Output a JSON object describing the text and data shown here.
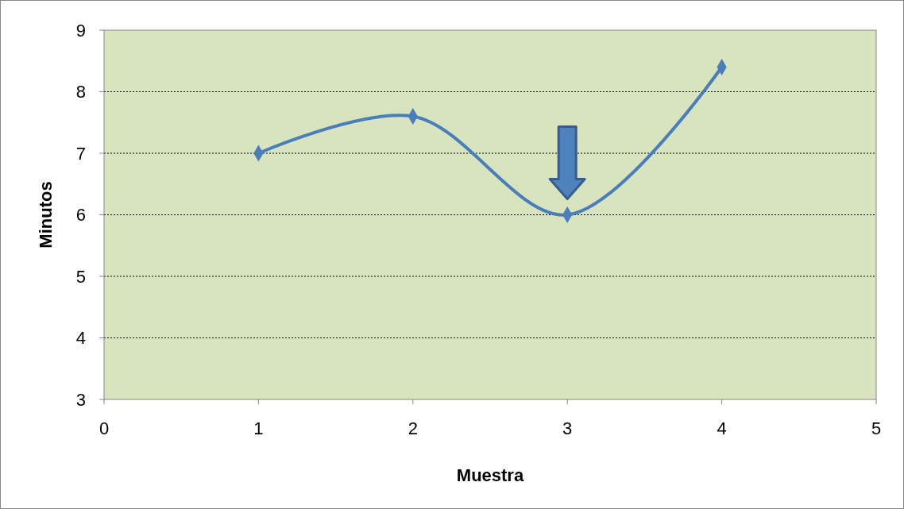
{
  "chart_data": {
    "type": "line",
    "xlabel": "Muestra",
    "ylabel": "Minutos",
    "x": [
      1,
      2,
      3,
      4
    ],
    "series": [
      {
        "color": "#4a7ebb",
        "values": [
          7,
          7.6,
          6,
          8.4
        ]
      }
    ],
    "xlim": [
      0,
      5
    ],
    "xticks": [
      0,
      1,
      2,
      3,
      4,
      5
    ],
    "ylim": [
      3,
      9
    ],
    "yticks": [
      3,
      4,
      5,
      6,
      7,
      8,
      9
    ],
    "grid": "y",
    "marker": "diamond",
    "line_style": "solid"
  }
}
